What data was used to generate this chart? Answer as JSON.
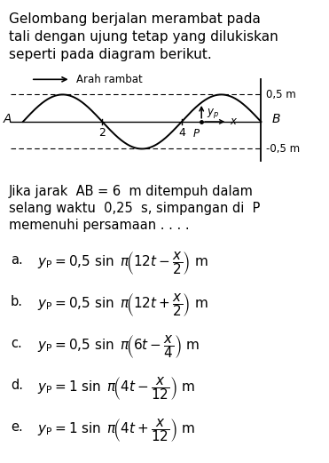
{
  "title_lines": [
    "Gelombang berjalan merambat pada",
    "tali dengan ujung tetap yang dilukiskan",
    "seperti pada diagram berikut."
  ],
  "arrow_label": "Arah rambat",
  "amplitude": 0.5,
  "label_05": "0,5 m",
  "label_n05": "-0,5 m",
  "label_A": "A",
  "label_B": "B",
  "label_2": "2",
  "label_4": "4",
  "label_P": "P",
  "label_yP": "y",
  "label_x": "x",
  "question_lines": [
    "Jika jarak  AB = 6  m ditempuh dalam",
    "selang waktu  0,25  s, simpangan di  P",
    "memenuhi persamaan . . . ."
  ],
  "option_labels": [
    "a.",
    "b.",
    "c.",
    "d.",
    "e."
  ],
  "option_exprs": [
    "$y_{\\rm P} = 0{,}5\\ \\sin\\ \\pi\\!\\left(12t - \\dfrac{x}{2}\\right)\\ \\rm m$",
    "$y_{\\rm P} = 0{,}5\\ \\sin\\ \\pi\\!\\left(12t + \\dfrac{x}{2}\\right)\\ \\rm m$",
    "$y_{\\rm P} = 0{,}5\\ \\sin\\ \\pi\\!\\left(6t - \\dfrac{x}{4}\\right)\\ \\rm m$",
    "$y_{\\rm P} = 1\\ \\sin\\ \\pi\\!\\left(4t - \\dfrac{x}{12}\\right)\\ \\rm m$",
    "$y_{\\rm P} = 1\\ \\sin\\ \\pi\\!\\left(4t + \\dfrac{x}{12}\\right)\\ \\rm m$"
  ],
  "bg_color": "#ffffff",
  "text_color": "#000000",
  "wave_color": "#000000",
  "fig_width": 3.71,
  "fig_height": 5.21,
  "dpi": 100
}
